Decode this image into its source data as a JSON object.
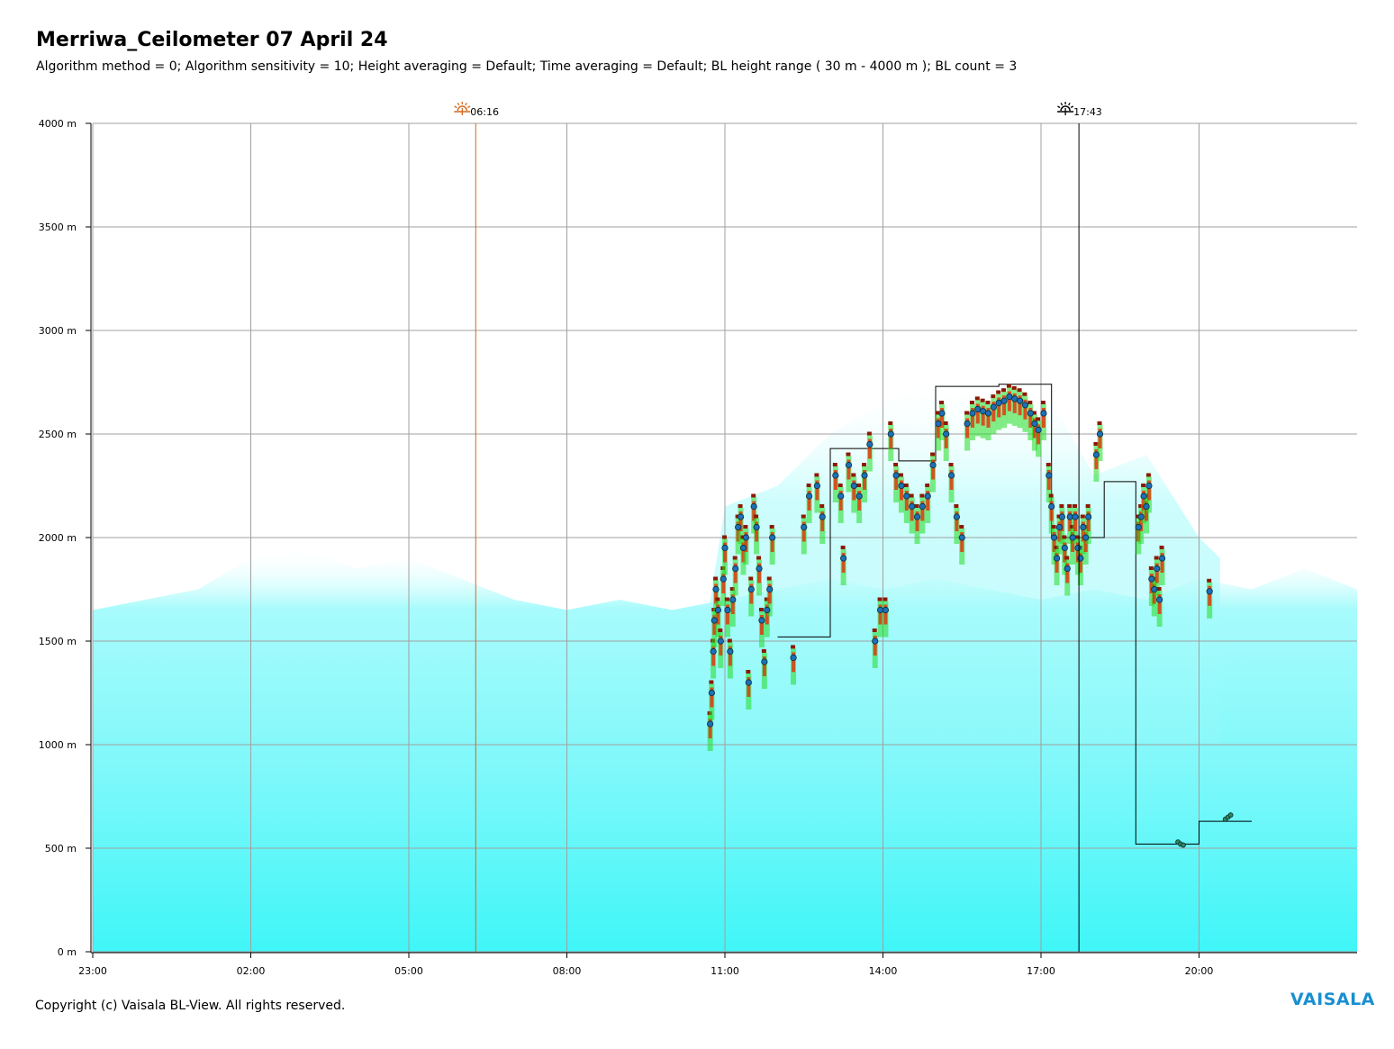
{
  "header": {
    "title": "Merriwa_Ceilometer 07 April 24",
    "subtitle": "Algorithm method = 0; Algorithm sensitivity = 10; Height averaging = Default; Time averaging = Default; BL height range ( 30 m - 4000 m ); BL count = 3"
  },
  "footer": {
    "copyright": "Copyright (c) Vaisala BL-View. All rights reserved.",
    "logo": "VAISALA"
  },
  "colors": {
    "sunrise": "#d2691e",
    "sunset": "#000000",
    "backscatter_low": "#7ff8fa",
    "backscatter_high": "#3ff6f8",
    "logo": "#1a8fd0",
    "bl_marker": "#1f6fb5",
    "bl_marker_small": "#2e8b57"
  },
  "chart_data": {
    "type": "heatmap",
    "description_type": "ceilometer backscatter time-height plot with boundary layer markers",
    "x_start_label": "23:00",
    "x_tick_labels": [
      "23:00",
      "02:00",
      "05:00",
      "08:00",
      "11:00",
      "14:00",
      "17:00",
      "20:00"
    ],
    "x_ticks_hours": [
      0,
      3,
      6,
      9,
      12,
      15,
      18,
      21
    ],
    "xlim_hours": [
      0,
      24
    ],
    "y_tick_labels": [
      "0 m",
      "500 m",
      "1000 m",
      "1500 m",
      "2000 m",
      "2500 m",
      "3000 m",
      "3500 m",
      "4000 m"
    ],
    "y_ticks_m": [
      0,
      500,
      1000,
      1500,
      2000,
      2500,
      3000,
      3500,
      4000
    ],
    "ylim_m": [
      0,
      4000
    ],
    "grid": true,
    "events": [
      {
        "name": "sunrise",
        "label": "06:16",
        "x_hours": 7.27,
        "icon": "sunrise-icon"
      },
      {
        "name": "sunset",
        "label": "17:43",
        "x_hours": 18.72,
        "icon": "sunset-icon"
      }
    ],
    "aerosol_layer_top_m": [
      [
        0,
        1650
      ],
      [
        1,
        1700
      ],
      [
        2,
        1750
      ],
      [
        3,
        1900
      ],
      [
        4,
        1950
      ],
      [
        5,
        1850
      ],
      [
        6,
        1900
      ],
      [
        7,
        1800
      ],
      [
        8,
        1700
      ],
      [
        9,
        1650
      ],
      [
        10,
        1700
      ],
      [
        11,
        1650
      ],
      [
        12,
        1700
      ],
      [
        13,
        1750
      ],
      [
        14,
        1800
      ],
      [
        15,
        1750
      ],
      [
        16,
        1800
      ],
      [
        17,
        1750
      ],
      [
        18,
        1700
      ],
      [
        19,
        1750
      ],
      [
        20,
        1700
      ],
      [
        21,
        1800
      ],
      [
        22,
        1750
      ],
      [
        23,
        1850
      ],
      [
        24,
        1750
      ]
    ],
    "bl_height_markers": [
      [
        11.72,
        1100
      ],
      [
        11.75,
        1250
      ],
      [
        11.78,
        1450
      ],
      [
        11.8,
        1600
      ],
      [
        11.83,
        1750
      ],
      [
        11.87,
        1650
      ],
      [
        11.92,
        1500
      ],
      [
        11.97,
        1800
      ],
      [
        12.0,
        1950
      ],
      [
        12.05,
        1650
      ],
      [
        12.1,
        1450
      ],
      [
        12.15,
        1700
      ],
      [
        12.2,
        1850
      ],
      [
        12.25,
        2050
      ],
      [
        12.3,
        2100
      ],
      [
        12.35,
        1950
      ],
      [
        12.4,
        2000
      ],
      [
        12.45,
        1300
      ],
      [
        12.5,
        1750
      ],
      [
        12.55,
        2150
      ],
      [
        12.6,
        2050
      ],
      [
        12.65,
        1850
      ],
      [
        12.7,
        1600
      ],
      [
        12.75,
        1400
      ],
      [
        12.8,
        1650
      ],
      [
        12.85,
        1750
      ],
      [
        12.9,
        2000
      ],
      [
        13.3,
        1420
      ],
      [
        13.5,
        2050
      ],
      [
        13.6,
        2200
      ],
      [
        13.75,
        2250
      ],
      [
        13.85,
        2100
      ],
      [
        14.1,
        2300
      ],
      [
        14.2,
        2200
      ],
      [
        14.25,
        1900
      ],
      [
        14.35,
        2350
      ],
      [
        14.45,
        2250
      ],
      [
        14.55,
        2200
      ],
      [
        14.65,
        2300
      ],
      [
        14.75,
        2450
      ],
      [
        14.85,
        1500
      ],
      [
        14.95,
        1650
      ],
      [
        15.05,
        1650
      ],
      [
        15.15,
        2500
      ],
      [
        15.25,
        2300
      ],
      [
        15.35,
        2250
      ],
      [
        15.45,
        2200
      ],
      [
        15.55,
        2150
      ],
      [
        15.65,
        2100
      ],
      [
        15.75,
        2150
      ],
      [
        15.85,
        2200
      ],
      [
        15.95,
        2350
      ],
      [
        16.05,
        2550
      ],
      [
        16.12,
        2600
      ],
      [
        16.2,
        2500
      ],
      [
        16.3,
        2300
      ],
      [
        16.4,
        2100
      ],
      [
        16.5,
        2000
      ],
      [
        16.6,
        2550
      ],
      [
        16.7,
        2600
      ],
      [
        16.8,
        2620
      ],
      [
        16.9,
        2610
      ],
      [
        17.0,
        2600
      ],
      [
        17.1,
        2630
      ],
      [
        17.2,
        2650
      ],
      [
        17.3,
        2660
      ],
      [
        17.4,
        2680
      ],
      [
        17.5,
        2670
      ],
      [
        17.6,
        2660
      ],
      [
        17.7,
        2640
      ],
      [
        17.8,
        2600
      ],
      [
        17.88,
        2550
      ],
      [
        17.95,
        2520
      ],
      [
        18.05,
        2600
      ],
      [
        18.15,
        2300
      ],
      [
        18.2,
        2150
      ],
      [
        18.25,
        2000
      ],
      [
        18.3,
        1900
      ],
      [
        18.35,
        2050
      ],
      [
        18.4,
        2100
      ],
      [
        18.45,
        1950
      ],
      [
        18.5,
        1850
      ],
      [
        18.55,
        2100
      ],
      [
        18.6,
        2000
      ],
      [
        18.65,
        2100
      ],
      [
        18.7,
        1950
      ],
      [
        18.75,
        1900
      ],
      [
        18.8,
        2050
      ],
      [
        18.85,
        2000
      ],
      [
        18.9,
        2100
      ],
      [
        19.05,
        2400
      ],
      [
        19.12,
        2500
      ],
      [
        19.85,
        2050
      ],
      [
        19.9,
        2100
      ],
      [
        19.95,
        2200
      ],
      [
        20.0,
        2150
      ],
      [
        20.05,
        2250
      ],
      [
        20.1,
        1800
      ],
      [
        20.15,
        1750
      ],
      [
        20.2,
        1850
      ],
      [
        20.25,
        1700
      ],
      [
        20.3,
        1900
      ],
      [
        20.6,
        530
      ],
      [
        20.65,
        520
      ],
      [
        20.7,
        515
      ],
      [
        21.2,
        1740
      ],
      [
        21.5,
        640
      ],
      [
        21.55,
        650
      ],
      [
        21.6,
        660
      ]
    ],
    "bl_step_line": [
      [
        13.0,
        1520
      ],
      [
        14.0,
        1520
      ],
      [
        14.0,
        2430
      ],
      [
        15.3,
        2430
      ],
      [
        15.3,
        2370
      ],
      [
        16.0,
        2370
      ],
      [
        16.0,
        2730
      ],
      [
        17.2,
        2730
      ],
      [
        17.2,
        2740
      ],
      [
        18.2,
        2740
      ],
      [
        18.2,
        2000
      ],
      [
        18.7,
        2000
      ],
      [
        18.7,
        2000
      ],
      [
        19.2,
        2000
      ],
      [
        19.2,
        2270
      ],
      [
        19.8,
        2270
      ],
      [
        19.8,
        520
      ],
      [
        21.0,
        520
      ],
      [
        21.0,
        630
      ],
      [
        22.0,
        630
      ]
    ]
  }
}
